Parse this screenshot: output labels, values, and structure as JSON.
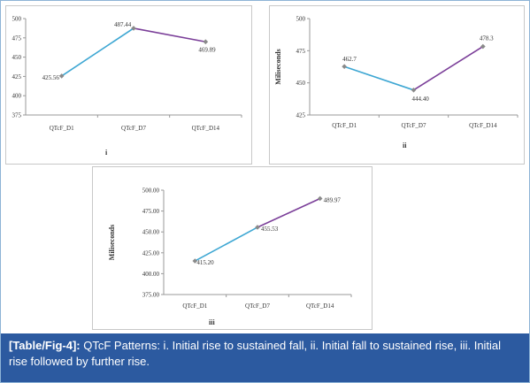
{
  "caption": {
    "tag": "[Table/Fig-4]:",
    "text": " QTcF Patterns: i. Initial rise to sustained fall, ii. Initial fall to sustained rise, iii. Initial rise followed by further rise."
  },
  "colors": {
    "segment_first": "#3ea7d3",
    "segment_second": "#7b3f99",
    "marker": "#8a8a8a",
    "axis": "#999999",
    "caption_bg": "#2c5aa0"
  },
  "chart_data": [
    {
      "id": "i",
      "type": "line",
      "panel_label": "i",
      "categories": [
        "QTcF_D1",
        "QTcF_D7",
        "QTcF_D14"
      ],
      "values": [
        425.56,
        487.44,
        469.89
      ],
      "data_labels": [
        "425.56",
        "487.44",
        "469.89"
      ],
      "ylabel": "",
      "ylim": [
        375,
        500
      ],
      "yticks": [
        "375",
        "400",
        "425",
        "450",
        "475",
        "500"
      ],
      "grid": false
    },
    {
      "id": "ii",
      "type": "line",
      "panel_label": "ii",
      "categories": [
        "QTcF_D1",
        "QTcF_D7",
        "QTcF_D14"
      ],
      "values": [
        462.7,
        444.4,
        478.3
      ],
      "data_labels": [
        "462.7",
        "444.40",
        "478.3"
      ],
      "ylabel": "Miliseconds",
      "ylim": [
        425,
        500
      ],
      "yticks": [
        "425",
        "450",
        "475",
        "500"
      ],
      "grid": false
    },
    {
      "id": "iii",
      "type": "line",
      "panel_label": "iii",
      "categories": [
        "QTcF_D1",
        "QTcF_D7",
        "QTcF_D14"
      ],
      "values": [
        415.2,
        455.53,
        489.97
      ],
      "data_labels": [
        "415.20",
        "455.53",
        "489.97"
      ],
      "ylabel": "Miliseconds",
      "ylim": [
        375,
        500
      ],
      "yticks": [
        "375.00",
        "400.00",
        "425.00",
        "450.00",
        "475.00",
        "500.00"
      ],
      "grid": false
    }
  ]
}
